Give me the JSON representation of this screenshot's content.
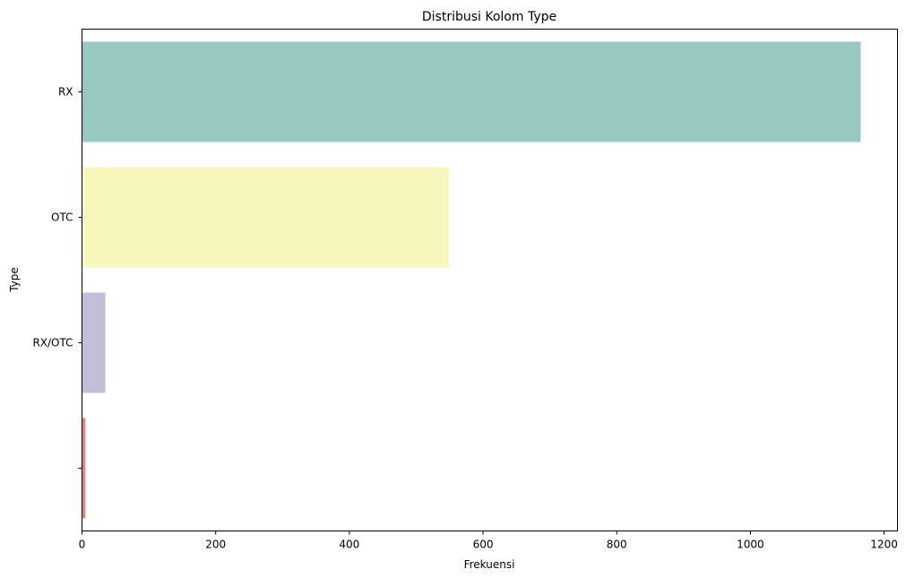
{
  "chart_data": {
    "type": "bar",
    "orientation": "horizontal",
    "title": "Distribusi Kolom Type",
    "xlabel": "Frekuensi",
    "ylabel": "Type",
    "categories": [
      "RX",
      "OTC",
      "RX/OTC",
      ""
    ],
    "values": [
      1165,
      549,
      35,
      5
    ],
    "colors": [
      "#98c9c1",
      "#f7f6bc",
      "#c2bfd9",
      "#ee7f73"
    ],
    "xlim": [
      0,
      1220
    ],
    "xticks": [
      0,
      200,
      400,
      600,
      800,
      1000,
      1200
    ],
    "grid": false,
    "legend": "none"
  }
}
